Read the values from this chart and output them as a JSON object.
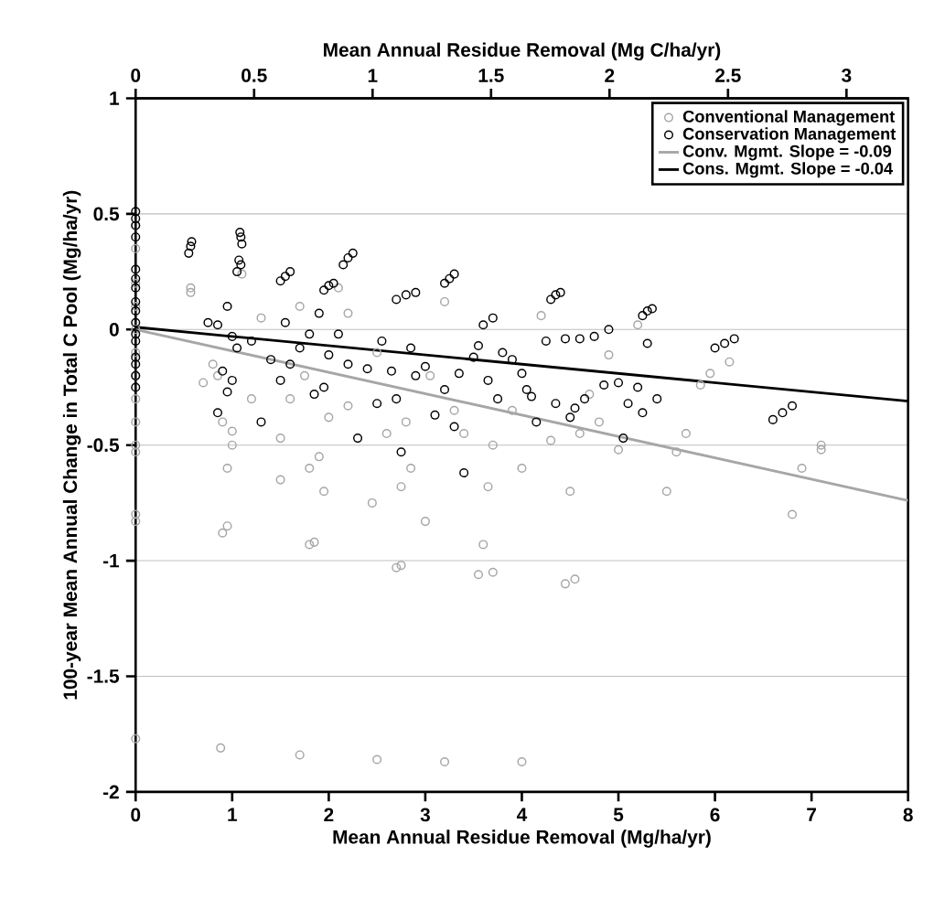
{
  "chart_data": {
    "type": "scatter",
    "xlabel": "Mean Annual Residue Removal (Mg/ha/yr)",
    "x2label": "Mean Annual Residue Removal (Mg C/ha/yr)",
    "ylabel": "100-year Mean Annual Change in Total C Pool (Mg/ha/yr)",
    "xlim": [
      0,
      8
    ],
    "xticks": [
      0,
      1,
      2,
      3,
      4,
      5,
      6,
      7,
      8
    ],
    "x2lim": [
      0,
      3.26
    ],
    "x2ticks": [
      0,
      0.5,
      1,
      1.5,
      2,
      2.5,
      3
    ],
    "ylim": [
      -2,
      1
    ],
    "yticks": [
      -2,
      -1.5,
      -1,
      -0.5,
      0,
      0.5,
      1
    ],
    "grid": "y",
    "legend": "top right",
    "marker": "circle",
    "series": [
      {
        "name": "Conventional Management",
        "color": "#a6a6a6",
        "x": [
          0,
          0,
          0,
          0,
          0,
          0,
          0,
          0,
          0,
          0,
          0,
          0,
          0,
          0,
          0.57,
          0.57,
          0.7,
          0.8,
          0.85,
          0.9,
          0.9,
          0.95,
          0.95,
          1.0,
          1.0,
          1.1,
          1.2,
          1.3,
          1.5,
          1.5,
          1.6,
          1.7,
          1.75,
          1.8,
          1.8,
          1.85,
          1.9,
          1.95,
          2.0,
          2.1,
          2.2,
          2.2,
          2.45,
          2.5,
          2.6,
          2.7,
          2.75,
          2.75,
          2.8,
          2.85,
          3.0,
          3.05,
          3.2,
          3.3,
          3.4,
          3.55,
          3.6,
          3.65,
          3.7,
          3.7,
          3.9,
          4.0,
          4.2,
          4.3,
          4.45,
          4.55,
          4.5,
          4.6,
          4.7,
          4.8,
          4.9,
          5.0,
          5.2,
          5.5,
          5.6,
          5.7,
          5.85,
          5.95,
          6.15,
          6.8,
          6.9,
          7.1,
          7.1,
          0.88,
          1.7,
          2.5,
          3.2,
          4.0
        ],
        "values": [
          0.45,
          0.35,
          0.2,
          0.1,
          0,
          -0.1,
          -0.2,
          -0.3,
          -0.4,
          -0.5,
          -0.53,
          -0.8,
          -0.83,
          -1.77,
          0.18,
          0.16,
          -0.23,
          -0.15,
          -0.2,
          -0.4,
          -0.88,
          -0.85,
          -0.6,
          -0.5,
          -0.44,
          0.24,
          -0.3,
          0.05,
          -0.47,
          -0.65,
          -0.3,
          0.1,
          -0.2,
          -0.6,
          -0.93,
          -0.92,
          -0.55,
          -0.7,
          -0.38,
          0.18,
          0.07,
          -0.33,
          -0.75,
          -0.1,
          -0.45,
          -1.03,
          -1.02,
          -0.68,
          -0.4,
          -0.6,
          -0.83,
          -0.2,
          0.12,
          -0.35,
          -0.45,
          -1.06,
          -0.93,
          -0.68,
          -1.05,
          -0.5,
          -0.35,
          -0.6,
          0.06,
          -0.48,
          -1.1,
          -1.08,
          -0.7,
          -0.45,
          -0.28,
          -0.4,
          -0.11,
          -0.52,
          0.02,
          -0.7,
          -0.53,
          -0.45,
          -0.24,
          -0.19,
          -0.14,
          -0.8,
          -0.6,
          -0.5,
          -0.52,
          -1.81,
          -1.84,
          -1.86,
          -1.87,
          -1.87
        ]
      },
      {
        "name": "Conservation Management",
        "color": "#000000",
        "x": [
          0,
          0,
          0,
          0,
          0,
          0,
          0,
          0,
          0,
          0,
          0,
          0,
          0,
          0,
          0,
          0,
          0.55,
          0.57,
          0.58,
          1.08,
          1.09,
          1.1,
          1.07,
          1.09,
          1.05,
          1.5,
          1.55,
          1.6,
          1.95,
          2.0,
          2.05,
          2.15,
          2.2,
          2.25,
          2.7,
          2.8,
          2.9,
          3.2,
          3.25,
          3.3,
          4.3,
          4.35,
          4.4,
          5.25,
          5.3,
          5.35,
          6.0,
          6.1,
          6.2,
          6.6,
          6.7,
          6.8,
          0.75,
          0.85,
          0.95,
          1.0,
          1.05,
          0.9,
          0.95,
          0.85,
          1.0,
          1.2,
          1.3,
          1.4,
          1.5,
          1.55,
          1.6,
          1.7,
          1.8,
          1.85,
          1.9,
          1.95,
          2.0,
          2.1,
          2.2,
          2.3,
          2.4,
          2.5,
          2.55,
          2.65,
          2.7,
          2.75,
          2.85,
          2.9,
          3.0,
          3.1,
          3.2,
          3.3,
          3.35,
          3.4,
          3.5,
          3.55,
          3.6,
          3.65,
          3.7,
          3.75,
          3.8,
          3.9,
          4.0,
          4.05,
          4.1,
          4.15,
          4.25,
          4.35,
          4.45,
          4.5,
          4.55,
          4.6,
          4.65,
          4.75,
          4.85,
          4.9,
          5.0,
          5.05,
          5.1,
          5.2,
          5.25,
          5.3,
          5.4
        ],
        "values": [
          0.51,
          0.48,
          0.45,
          0.4,
          0.26,
          0.22,
          0.18,
          0.12,
          0.08,
          0.03,
          -0.02,
          -0.05,
          -0.12,
          -0.15,
          -0.2,
          -0.25,
          0.33,
          0.36,
          0.38,
          0.42,
          0.4,
          0.37,
          0.3,
          0.28,
          0.25,
          0.21,
          0.23,
          0.25,
          0.17,
          0.19,
          0.2,
          0.28,
          0.31,
          0.33,
          0.13,
          0.15,
          0.16,
          0.2,
          0.22,
          0.24,
          0.13,
          0.15,
          0.16,
          0.06,
          0.08,
          0.09,
          -0.08,
          -0.06,
          -0.04,
          -0.39,
          -0.36,
          -0.33,
          0.03,
          0.02,
          0.1,
          -0.03,
          -0.08,
          -0.18,
          -0.27,
          -0.36,
          -0.22,
          -0.05,
          -0.4,
          -0.13,
          -0.22,
          0.03,
          -0.15,
          -0.08,
          -0.02,
          -0.28,
          0.07,
          -0.25,
          -0.11,
          -0.02,
          -0.15,
          -0.47,
          -0.17,
          -0.32,
          -0.05,
          -0.18,
          -0.3,
          -0.53,
          -0.08,
          -0.2,
          -0.16,
          -0.37,
          -0.26,
          -0.42,
          -0.19,
          -0.62,
          -0.12,
          -0.07,
          0.02,
          -0.22,
          0.05,
          -0.3,
          -0.1,
          -0.13,
          -0.19,
          -0.26,
          -0.29,
          -0.4,
          -0.05,
          -0.32,
          -0.04,
          -0.38,
          -0.34,
          -0.04,
          -0.3,
          -0.03,
          -0.24,
          0.0,
          -0.23,
          -0.47,
          -0.32,
          -0.25,
          -0.36,
          -0.06,
          -0.3
        ]
      },
      {
        "name": "Conv. Mgmt. Slope = -0.09",
        "type": "line",
        "marker": "none",
        "color": "#a6a6a6",
        "x": [
          0,
          8
        ],
        "values": [
          0,
          -0.74
        ]
      },
      {
        "name": "Cons. Mgmt. Slope = -0.04",
        "type": "line",
        "marker": "none",
        "color": "#000000",
        "x": [
          0,
          8
        ],
        "values": [
          0.01,
          -0.31
        ]
      }
    ]
  }
}
